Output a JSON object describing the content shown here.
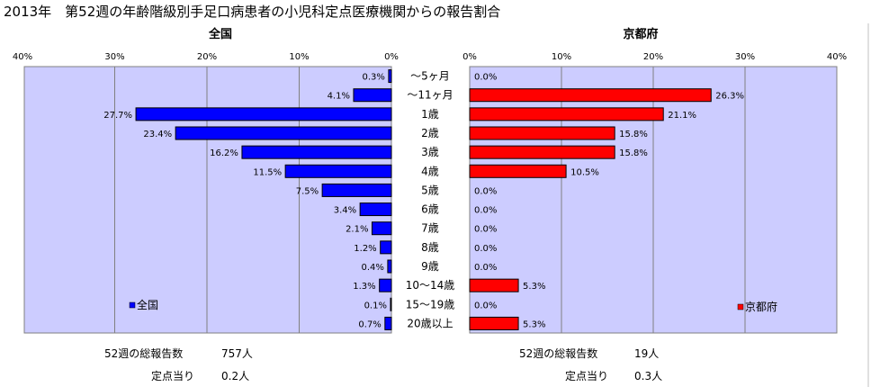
{
  "title": "2013年　第52週の年齢階級別手足口病患者の小児科定点医療機関からの報告割合",
  "chart_data": [
    {
      "type": "bar",
      "orientation": "horizontal",
      "direction": "right-to-left",
      "panel_title": "全国",
      "legend": "全国",
      "legend_position": "bottom-left",
      "color": "#0000ff",
      "xlim": [
        0,
        40
      ],
      "xticks": [
        "0%",
        "10%",
        "20%",
        "30%",
        "40%"
      ],
      "categories": [
        "～5ヶ月",
        "～11ヶ月",
        "1歳",
        "2歳",
        "3歳",
        "4歳",
        "5歳",
        "6歳",
        "7歳",
        "8歳",
        "9歳",
        "10～14歳",
        "15～19歳",
        "20歳以上"
      ],
      "values": [
        0.3,
        4.1,
        27.7,
        23.4,
        16.2,
        11.5,
        7.5,
        3.4,
        2.1,
        1.2,
        0.4,
        1.3,
        0.1,
        0.7
      ],
      "labels": [
        "0.3%",
        "4.1%",
        "27.7%",
        "23.4%",
        "16.2%",
        "11.5%",
        "7.5%",
        "3.4%",
        "2.1%",
        "1.2%",
        "0.4%",
        "1.3%",
        "0.1%",
        "0.7%"
      ]
    },
    {
      "type": "bar",
      "orientation": "horizontal",
      "direction": "left-to-right",
      "panel_title": "京都府",
      "legend": "京都府",
      "legend_position": "bottom-right",
      "color": "#ff0000",
      "xlim": [
        0,
        40
      ],
      "xticks": [
        "0%",
        "10%",
        "20%",
        "30%",
        "40%"
      ],
      "categories": [
        "～5ヶ月",
        "～11ヶ月",
        "1歳",
        "2歳",
        "3歳",
        "4歳",
        "5歳",
        "6歳",
        "7歳",
        "8歳",
        "9歳",
        "10～14歳",
        "15～19歳",
        "20歳以上"
      ],
      "values": [
        0.0,
        26.3,
        21.1,
        15.8,
        15.8,
        10.5,
        0.0,
        0.0,
        0.0,
        0.0,
        0.0,
        5.3,
        0.0,
        5.3
      ],
      "labels": [
        "0.0%",
        "26.3%",
        "21.1%",
        "15.8%",
        "15.8%",
        "10.5%",
        "0.0%",
        "0.0%",
        "0.0%",
        "0.0%",
        "0.0%",
        "5.3%",
        "0.0%",
        "5.3%"
      ]
    }
  ],
  "footer": {
    "left_total_label": "52週の総報告数",
    "left_total_value": "757人",
    "left_per_label": "定点当り",
    "left_per_value": "0.2人",
    "right_total_label": "52週の総報告数",
    "right_total_value": "19人",
    "right_per_label": "定点当り",
    "right_per_value": "0.3人"
  }
}
